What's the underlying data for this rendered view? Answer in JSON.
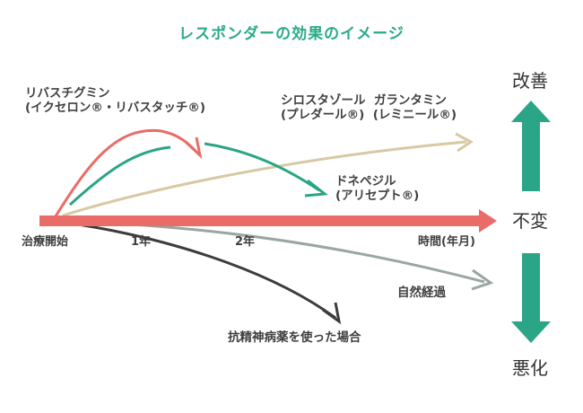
{
  "title": "レスポンダーの効果のイメージ",
  "states": {
    "improve": "改善",
    "unchanged": "不変",
    "worsen": "悪化"
  },
  "axis": {
    "start": "治療開始",
    "year1": "1年",
    "year2": "2年",
    "unit": "時間(年月)"
  },
  "drugs": {
    "riva_line1": "リバスチグミン",
    "riva_line2": "(イクセロン®・リバスタッチ®)",
    "cilo_line1": "シロスタゾール  ガランタミン",
    "cilo_line2": "(プレダール®)  (レミニール®)",
    "done_line1": "ドネペジル",
    "done_line2": "(アリセプト®)"
  },
  "natural": "自然経過",
  "antipsychotic": "抗精神病薬を使った場合",
  "colors": {
    "title": "#2aaa8a",
    "teal": "#2aa585",
    "coral": "#e96c68",
    "tan": "#d8c8a4",
    "gray": "#9aa6a3",
    "dark": "#3c3c3c"
  }
}
